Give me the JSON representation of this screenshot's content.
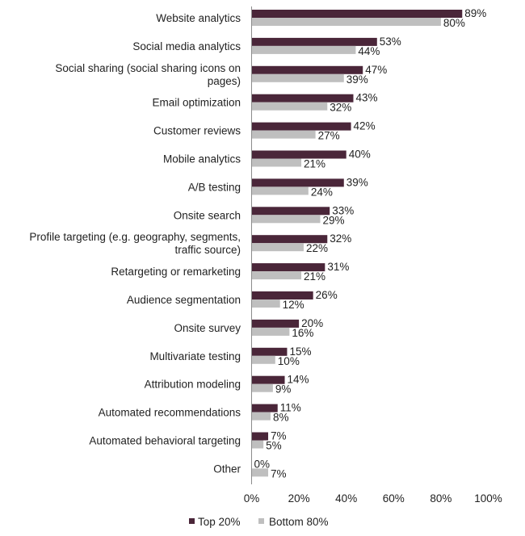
{
  "chart_data": {
    "type": "bar",
    "orientation": "horizontal",
    "categories": [
      [
        "Website analytics"
      ],
      [
        "Social media analytics"
      ],
      [
        "Social sharing (social sharing icons on",
        "pages)"
      ],
      [
        "Email optimization"
      ],
      [
        "Customer reviews"
      ],
      [
        "Mobile analytics"
      ],
      [
        "A/B testing"
      ],
      [
        "Onsite search"
      ],
      [
        "Profile targeting (e.g. geography, segments,",
        "traffic source)"
      ],
      [
        "Retargeting or remarketing"
      ],
      [
        "Audience segmentation"
      ],
      [
        "Onsite survey"
      ],
      [
        "Multivariate testing"
      ],
      [
        "Attribution modeling"
      ],
      [
        "Automated recommendations"
      ],
      [
        "Automated behavioral targeting"
      ],
      [
        "Other"
      ]
    ],
    "series": [
      {
        "name": "Top 20%",
        "color": "#4a2639",
        "values": [
          89,
          53,
          47,
          43,
          42,
          40,
          39,
          33,
          32,
          31,
          26,
          20,
          15,
          14,
          11,
          7,
          0
        ],
        "labels": [
          "89%",
          "53%",
          "47%",
          "43%",
          "42%",
          "40%",
          "39%",
          "33%",
          "32%",
          "31%",
          "26%",
          "20%",
          "15%",
          "14%",
          "11%",
          "7%",
          "0%"
        ]
      },
      {
        "name": "Bottom 80%",
        "color": "#bfbfbf",
        "values": [
          80,
          44,
          39,
          32,
          27,
          21,
          24,
          29,
          22,
          21,
          12,
          16,
          10,
          9,
          8,
          5,
          7
        ],
        "labels": [
          "80%",
          "44%",
          "39%",
          "32%",
          "27%",
          "21%",
          "24%",
          "29%",
          "22%",
          "21%",
          "12%",
          "16%",
          "10%",
          "9%",
          "8%",
          "5%",
          "7%"
        ]
      }
    ],
    "xlim": [
      0,
      100
    ],
    "x_ticks": [
      "0%",
      "20%",
      "40%",
      "60%",
      "80%",
      "100%"
    ],
    "x_tick_values": [
      0,
      20,
      40,
      60,
      80,
      100
    ],
    "grid": false,
    "legend_position": "bottom",
    "title": "",
    "xlabel": "",
    "ylabel": ""
  }
}
